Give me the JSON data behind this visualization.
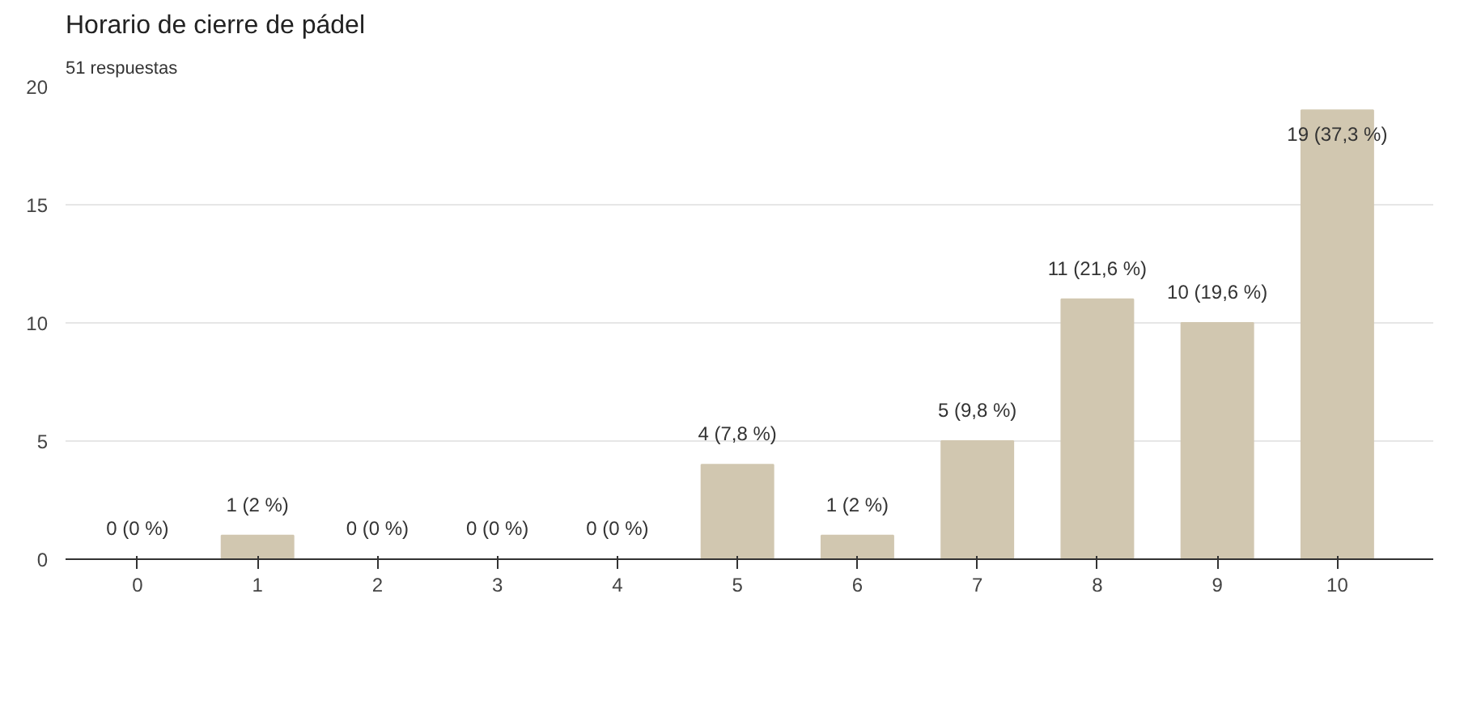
{
  "chart_data": {
    "type": "bar",
    "title": "Horario de cierre de pádel",
    "subtitle": "51 respuestas",
    "categories": [
      "0",
      "1",
      "2",
      "3",
      "4",
      "5",
      "6",
      "7",
      "8",
      "9",
      "10"
    ],
    "values": [
      0,
      1,
      0,
      0,
      0,
      4,
      1,
      5,
      11,
      10,
      19
    ],
    "value_labels": [
      "0 (0 %)",
      "1 (2 %)",
      "0 (0 %)",
      "0 (0 %)",
      "0 (0 %)",
      "4 (7,8 %)",
      "1 (2 %)",
      "5 (9,8 %)",
      "11 (21,6 %)",
      "10 (19,6 %)",
      "19 (37,3 %)"
    ],
    "color": "#d1c7b0",
    "ylim": [
      0,
      20
    ],
    "yticks": [
      0,
      5,
      10,
      15,
      20
    ],
    "grid": "y"
  }
}
